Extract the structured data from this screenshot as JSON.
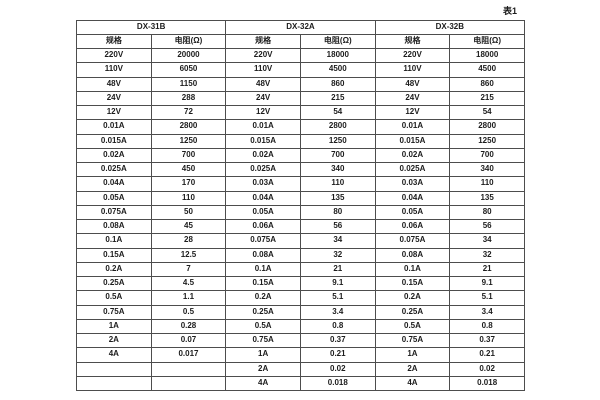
{
  "caption": "表1",
  "colors": {
    "background": "#ffffff",
    "border": "#4d4d4d",
    "text": "#1c1c1c"
  },
  "table": {
    "groups": [
      {
        "name": "DX-31B",
        "spec_header": "规格",
        "resistance_header": "电阻(Ω)"
      },
      {
        "name": "DX-32A",
        "spec_header": "规格",
        "resistance_header": "电阻(Ω)"
      },
      {
        "name": "DX-32B",
        "spec_header": "规格",
        "resistance_header": "电阻(Ω)"
      }
    ],
    "rows": [
      [
        "220V",
        "20000",
        "220V",
        "18000",
        "220V",
        "18000"
      ],
      [
        "110V",
        "6050",
        "110V",
        "4500",
        "110V",
        "4500"
      ],
      [
        "48V",
        "1150",
        "48V",
        "860",
        "48V",
        "860"
      ],
      [
        "24V",
        "288",
        "24V",
        "215",
        "24V",
        "215"
      ],
      [
        "12V",
        "72",
        "12V",
        "54",
        "12V",
        "54"
      ],
      [
        "0.01A",
        "2800",
        "0.01A",
        "2800",
        "0.01A",
        "2800"
      ],
      [
        "0.015A",
        "1250",
        "0.015A",
        "1250",
        "0.015A",
        "1250"
      ],
      [
        "0.02A",
        "700",
        "0.02A",
        "700",
        "0.02A",
        "700"
      ],
      [
        "0.025A",
        "450",
        "0.025A",
        "340",
        "0.025A",
        "340"
      ],
      [
        "0.04A",
        "170",
        "0.03A",
        "110",
        "0.03A",
        "110"
      ],
      [
        "0.05A",
        "110",
        "0.04A",
        "135",
        "0.04A",
        "135"
      ],
      [
        "0.075A",
        "50",
        "0.05A",
        "80",
        "0.05A",
        "80"
      ],
      [
        "0.08A",
        "45",
        "0.06A",
        "56",
        "0.06A",
        "56"
      ],
      [
        "0.1A",
        "28",
        "0.075A",
        "34",
        "0.075A",
        "34"
      ],
      [
        "0.15A",
        "12.5",
        "0.08A",
        "32",
        "0.08A",
        "32"
      ],
      [
        "0.2A",
        "7",
        "0.1A",
        "21",
        "0.1A",
        "21"
      ],
      [
        "0.25A",
        "4.5",
        "0.15A",
        "9.1",
        "0.15A",
        "9.1"
      ],
      [
        "0.5A",
        "1.1",
        "0.2A",
        "5.1",
        "0.2A",
        "5.1"
      ],
      [
        "0.75A",
        "0.5",
        "0.25A",
        "3.4",
        "0.25A",
        "3.4"
      ],
      [
        "1A",
        "0.28",
        "0.5A",
        "0.8",
        "0.5A",
        "0.8"
      ],
      [
        "2A",
        "0.07",
        "0.75A",
        "0.37",
        "0.75A",
        "0.37"
      ],
      [
        "4A",
        "0.017",
        "1A",
        "0.21",
        "1A",
        "0.21"
      ],
      [
        "",
        "",
        "2A",
        "0.02",
        "2A",
        "0.02"
      ],
      [
        "",
        "",
        "4A",
        "0.018",
        "4A",
        "0.018"
      ]
    ]
  },
  "chart_data": {
    "type": "table",
    "title": "表1",
    "column_groups": [
      "DX-31B",
      "DX-32A",
      "DX-32B"
    ],
    "columns_per_group": [
      "规格",
      "电阻(Ω)"
    ]
  }
}
